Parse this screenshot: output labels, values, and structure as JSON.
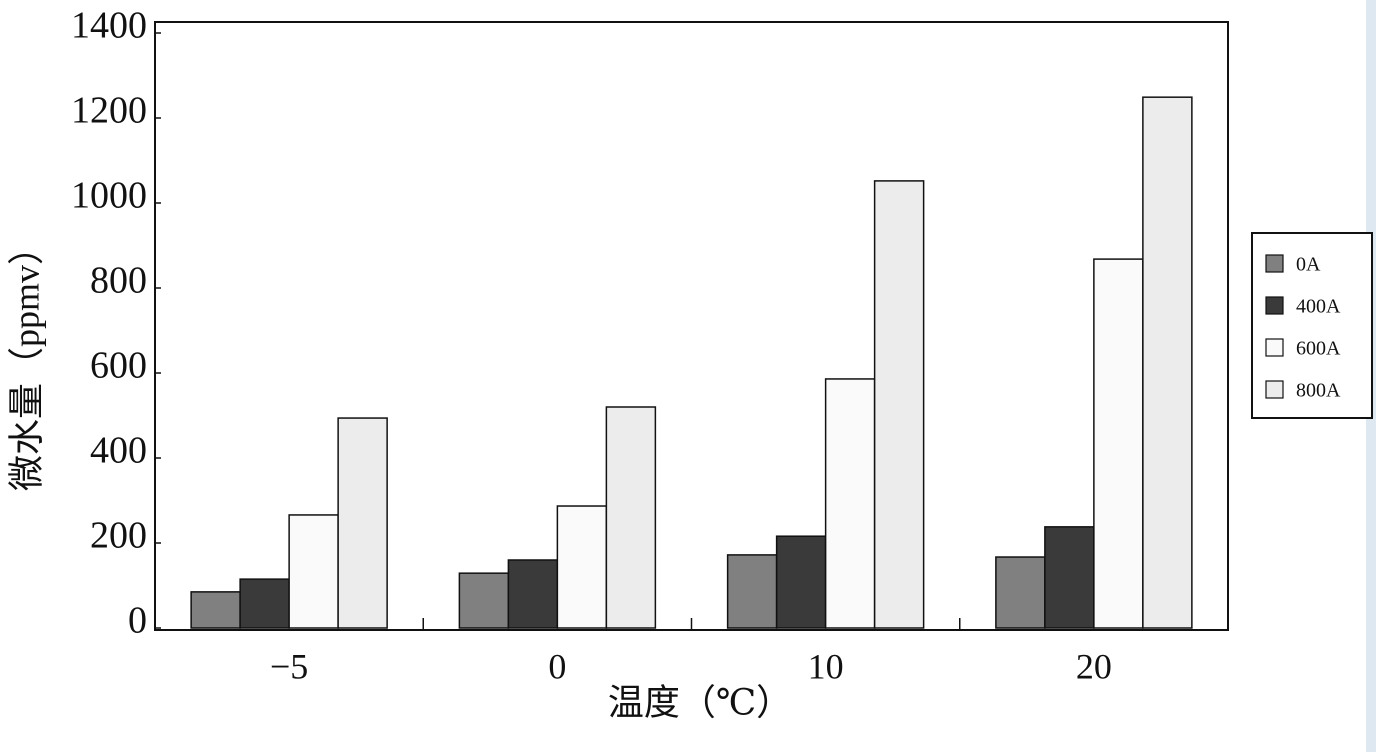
{
  "chart_data": {
    "type": "bar",
    "x_label": "温度（℃）",
    "y_label": "微水量（ppmv）",
    "categories": [
      "−5",
      "0",
      "10",
      "20"
    ],
    "series": [
      {
        "name": "0A",
        "color": "#808080",
        "values": [
          85,
          129,
          172,
          167
        ]
      },
      {
        "name": "400A",
        "color": "#3a3a3a",
        "values": [
          115,
          160,
          216,
          238
        ]
      },
      {
        "name": "600A",
        "color": "#fafafa",
        "values": [
          266,
          287,
          586,
          868
        ]
      },
      {
        "name": "800A",
        "color": "#ececec",
        "values": [
          494,
          520,
          1052,
          1249
        ]
      }
    ],
    "ylim": [
      0,
      1400
    ],
    "yticks": [
      0,
      200,
      400,
      600,
      800,
      1000,
      1200,
      1400
    ],
    "grid": false,
    "legend": "right"
  }
}
